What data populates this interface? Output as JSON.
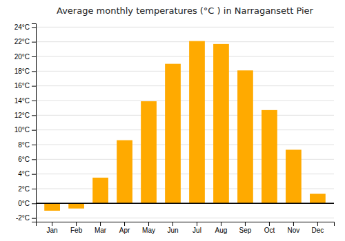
{
  "chart_data": {
    "type": "bar",
    "title": "Average monthly temperatures (°C ) in Narragansett Pier",
    "categories": [
      "Jan",
      "Feb",
      "Mar",
      "Apr",
      "May",
      "Jun",
      "Jul",
      "Aug",
      "Sep",
      "Oct",
      "Nov",
      "Dec"
    ],
    "values": [
      -1.0,
      -0.7,
      3.5,
      8.6,
      13.9,
      19.0,
      22.1,
      21.7,
      18.1,
      12.7,
      7.3,
      1.3
    ],
    "color": "#FFAA00",
    "ylim": [
      -2.5,
      24.5
    ],
    "yticks": [
      {
        "value": -2,
        "label": "-2°C"
      },
      {
        "value": 0,
        "label": "0°C"
      },
      {
        "value": 2,
        "label": "2°C"
      },
      {
        "value": 4,
        "label": "4°C"
      },
      {
        "value": 6,
        "label": "6°C"
      },
      {
        "value": 8,
        "label": "8°C"
      },
      {
        "value": 10,
        "label": "10°C"
      },
      {
        "value": 12,
        "label": "12°C"
      },
      {
        "value": 14,
        "label": "14°C"
      },
      {
        "value": 16,
        "label": "16°C"
      },
      {
        "value": 18,
        "label": "18°C"
      },
      {
        "value": 20,
        "label": "20°C"
      },
      {
        "value": 22,
        "label": "22°C"
      },
      {
        "value": 24,
        "label": "24°C"
      }
    ],
    "grid": true
  }
}
